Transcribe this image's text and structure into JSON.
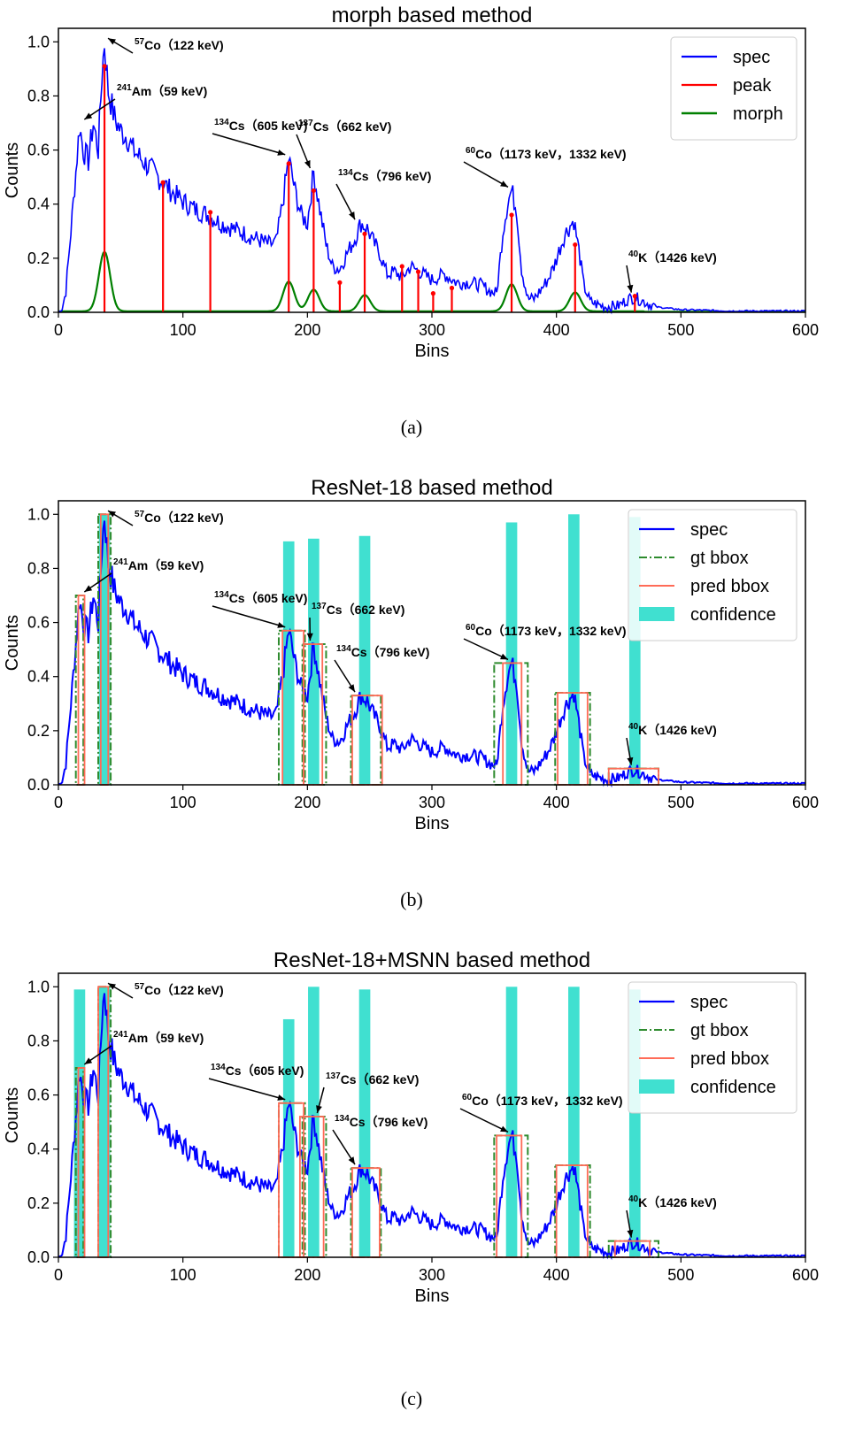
{
  "colors": {
    "spec": "#0000ff",
    "peak": "#ff0000",
    "morph": "#008000",
    "gt": "#2e8b2e",
    "pred": "#ff6b57",
    "conf": "#40e0d0"
  },
  "chart_data": [
    {
      "type": "line",
      "panel": "a",
      "title": "morph based method",
      "caption": "(a)",
      "xlabel": "Bins",
      "ylabel": "Counts",
      "xlim": [
        0,
        600
      ],
      "ylim": [
        0,
        1.05
      ],
      "xticks": [
        "0",
        "100",
        "200",
        "300",
        "400",
        "500",
        "600"
      ],
      "yticks": [
        "0.0",
        "0.2",
        "0.4",
        "0.6",
        "0.8",
        "1.0"
      ],
      "legend": {
        "position": "top-right",
        "entries": [
          "spec",
          "peak",
          "morph"
        ]
      },
      "series": [
        {
          "name": "spec",
          "kind": "spectrum"
        },
        {
          "name": "peak",
          "kind": "stems",
          "x": [
            37,
            84,
            122,
            185,
            205,
            226,
            246,
            276,
            289,
            301,
            316,
            364,
            415,
            463
          ],
          "y": [
            0.91,
            0.48,
            0.37,
            0.55,
            0.45,
            0.11,
            0.29,
            0.17,
            0.15,
            0.07,
            0.09,
            0.36,
            0.25,
            0.06
          ]
        },
        {
          "name": "morph",
          "kind": "morph",
          "x": [
            37,
            185,
            205,
            246,
            364,
            415
          ],
          "y": [
            0.22,
            0.11,
            0.08,
            0.06,
            0.1,
            0.07
          ]
        }
      ],
      "annotations": [
        {
          "sup": "57",
          "text": "Co（122 keV)",
          "x": 37,
          "y": 1.0
        },
        {
          "sup": "241",
          "text": "Am（59 keV)",
          "x": 18,
          "y": 0.7
        },
        {
          "sup": "134",
          "text": "Cs（605 keV)",
          "x": 185,
          "y": 0.57
        },
        {
          "sup": "137",
          "text": "Cs（662 keV)",
          "x": 205,
          "y": 0.52
        },
        {
          "sup": "134",
          "text": "Cs（796 keV)",
          "x": 241,
          "y": 0.33
        },
        {
          "sup": "60",
          "text": "Co（1173 keV，1332 keV)",
          "x": 364,
          "y": 0.45
        },
        {
          "sup": "40",
          "text": "K（1426 keV)",
          "x": 463,
          "y": 0.06
        }
      ]
    },
    {
      "type": "line",
      "panel": "b",
      "title": "ResNet-18 based method",
      "caption": "(b)",
      "xlabel": "Bins",
      "ylabel": "Counts",
      "xlim": [
        0,
        600
      ],
      "ylim": [
        0,
        1.05
      ],
      "xticks": [
        "0",
        "100",
        "200",
        "300",
        "400",
        "500",
        "600"
      ],
      "yticks": [
        "0.0",
        "0.2",
        "0.4",
        "0.6",
        "0.8",
        "1.0"
      ],
      "legend": {
        "position": "top-right",
        "entries": [
          "spec",
          "gt bbox",
          "pred bbox",
          "confidence"
        ]
      },
      "series": [
        {
          "name": "spec",
          "kind": "spectrum"
        },
        {
          "name": "gt bbox",
          "kind": "boxes",
          "boxes": [
            [
              14,
              20,
              0.7
            ],
            [
              32,
              42,
              1.0
            ],
            [
              177,
              198,
              0.57
            ],
            [
              196,
              215,
              0.52
            ],
            [
              235,
              259,
              0.33
            ],
            [
              350,
              377,
              0.45
            ],
            [
              399,
              427,
              0.34
            ],
            [
              442,
              482,
              0.06
            ]
          ]
        },
        {
          "name": "pred bbox",
          "kind": "boxes",
          "boxes": [
            [
              16,
              21,
              0.7
            ],
            [
              34,
              40,
              1.0
            ],
            [
              180,
              197,
              0.57
            ],
            [
              197,
              212,
              0.52
            ],
            [
              236,
              260,
              0.33
            ],
            [
              357,
              372,
              0.45
            ],
            [
              401,
              425,
              0.34
            ],
            [
              442,
              482,
              0.06
            ]
          ]
        },
        {
          "name": "confidence",
          "kind": "bars",
          "x": [
            37,
            185,
            205,
            246,
            364,
            414,
            463
          ],
          "y": [
            1.0,
            0.9,
            0.91,
            0.92,
            0.97,
            1.0,
            0.99
          ],
          "width": 9
        }
      ],
      "annotations": [
        {
          "sup": "57",
          "text": "Co（122 keV)",
          "x": 37,
          "y": 1.0
        },
        {
          "sup": "241",
          "text": "Am（59 keV)",
          "x": 18,
          "y": 0.7
        },
        {
          "sup": "134",
          "text": "Cs（605 keV)",
          "x": 185,
          "y": 0.57
        },
        {
          "sup": "137",
          "text": "Cs（662 keV)",
          "x": 205,
          "y": 0.52
        },
        {
          "sup": "134",
          "text": "Cs（796 keV)",
          "x": 241,
          "y": 0.33
        },
        {
          "sup": "60",
          "text": "Co（1173 keV，1332 keV)",
          "x": 364,
          "y": 0.45
        },
        {
          "sup": "40",
          "text": "K（1426 keV)",
          "x": 463,
          "y": 0.06
        }
      ]
    },
    {
      "type": "line",
      "panel": "c",
      "title": "ResNet-18+MSNN based method",
      "caption": "(c)",
      "xlabel": "Bins",
      "ylabel": "Counts",
      "xlim": [
        0,
        600
      ],
      "ylim": [
        0,
        1.05
      ],
      "xticks": [
        "0",
        "100",
        "200",
        "300",
        "400",
        "500",
        "600"
      ],
      "yticks": [
        "0.0",
        "0.2",
        "0.4",
        "0.6",
        "0.8",
        "1.0"
      ],
      "legend": {
        "position": "top-right",
        "entries": [
          "spec",
          "gt bbox",
          "pred bbox",
          "confidence"
        ]
      },
      "series": [
        {
          "name": "spec",
          "kind": "spectrum"
        },
        {
          "name": "gt bbox",
          "kind": "boxes",
          "boxes": [
            [
              14,
              20,
              0.7
            ],
            [
              32,
              42,
              1.0
            ],
            [
              177,
              198,
              0.57
            ],
            [
              196,
              215,
              0.52
            ],
            [
              235,
              259,
              0.33
            ],
            [
              350,
              377,
              0.45
            ],
            [
              399,
              427,
              0.34
            ],
            [
              442,
              482,
              0.06
            ]
          ]
        },
        {
          "name": "pred bbox",
          "kind": "boxes",
          "boxes": [
            [
              16,
              21,
              0.7
            ],
            [
              32,
              40,
              1.0
            ],
            [
              177,
              197,
              0.57
            ],
            [
              194,
              213,
              0.52
            ],
            [
              236,
              258,
              0.33
            ],
            [
              352,
              372,
              0.45
            ],
            [
              400,
              425,
              0.34
            ],
            [
              447,
              475,
              0.06
            ]
          ]
        },
        {
          "name": "confidence",
          "kind": "bars",
          "x": [
            17,
            37,
            185,
            205,
            246,
            364,
            414,
            463
          ],
          "y": [
            0.99,
            1.0,
            0.88,
            1.0,
            0.99,
            1.0,
            1.0,
            0.99
          ],
          "width": 9
        }
      ],
      "annotations": [
        {
          "sup": "57",
          "text": "Co（122 keV)",
          "x": 37,
          "y": 1.0
        },
        {
          "sup": "241",
          "text": "Am（59 keV)",
          "x": 18,
          "y": 0.7
        },
        {
          "sup": "134",
          "text": "Cs（605 keV)",
          "x": 185,
          "y": 0.57
        },
        {
          "sup": "137",
          "text": "Cs（662 keV)",
          "x": 205,
          "y": 0.52
        },
        {
          "sup": "134",
          "text": "Cs（796 keV)",
          "x": 241,
          "y": 0.33
        },
        {
          "sup": "60",
          "text": "Co（1173 keV，1332 keV)",
          "x": 364,
          "y": 0.45
        },
        {
          "sup": "40",
          "text": "K（1426 keV)",
          "x": 463,
          "y": 0.06
        }
      ]
    }
  ],
  "spectrum": {
    "x": [
      0,
      3,
      6,
      10,
      14,
      17,
      20,
      24,
      28,
      32,
      35,
      37,
      40,
      45,
      50,
      55,
      60,
      70,
      80,
      90,
      100,
      110,
      120,
      130,
      140,
      150,
      160,
      170,
      175,
      180,
      185,
      190,
      195,
      200,
      205,
      210,
      215,
      220,
      226,
      232,
      238,
      243,
      248,
      253,
      258,
      264,
      270,
      276,
      283,
      290,
      300,
      310,
      320,
      330,
      340,
      346,
      352,
      357,
      361,
      364,
      368,
      372,
      377,
      382,
      387,
      393,
      398,
      403,
      407,
      411,
      414,
      418,
      422,
      427,
      432,
      440,
      450,
      458,
      463,
      470,
      480,
      500,
      540,
      600
    ],
    "y": [
      0.0,
      0.01,
      0.08,
      0.3,
      0.52,
      0.69,
      0.6,
      0.56,
      0.7,
      0.6,
      0.88,
      1.0,
      0.82,
      0.72,
      0.67,
      0.65,
      0.6,
      0.55,
      0.5,
      0.45,
      0.41,
      0.38,
      0.36,
      0.33,
      0.31,
      0.29,
      0.27,
      0.25,
      0.26,
      0.4,
      0.57,
      0.45,
      0.36,
      0.33,
      0.52,
      0.38,
      0.25,
      0.17,
      0.16,
      0.22,
      0.27,
      0.33,
      0.31,
      0.26,
      0.22,
      0.14,
      0.15,
      0.13,
      0.17,
      0.15,
      0.12,
      0.14,
      0.11,
      0.11,
      0.1,
      0.08,
      0.07,
      0.3,
      0.41,
      0.45,
      0.38,
      0.16,
      0.05,
      0.05,
      0.08,
      0.12,
      0.17,
      0.24,
      0.29,
      0.32,
      0.34,
      0.23,
      0.1,
      0.04,
      0.03,
      0.02,
      0.025,
      0.05,
      0.055,
      0.04,
      0.02,
      0.01,
      0.005,
      0.005
    ]
  }
}
